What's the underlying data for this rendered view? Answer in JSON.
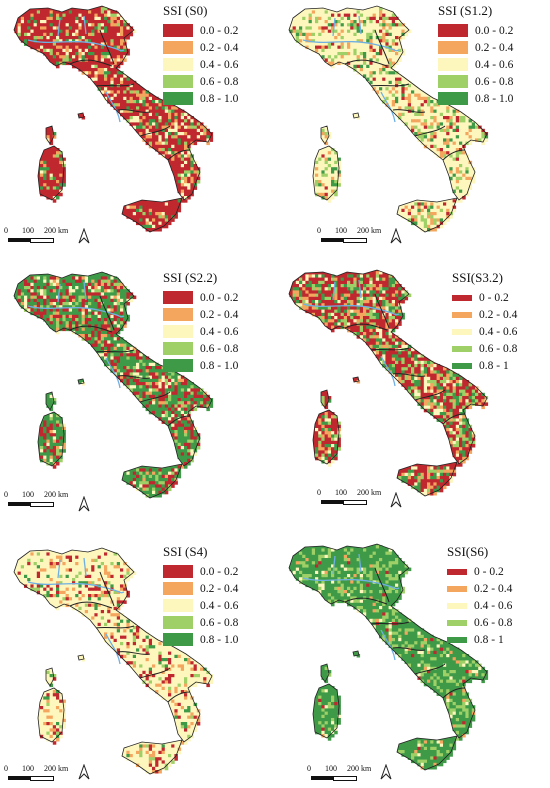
{
  "colors": {
    "c1": "#c0282f",
    "c2": "#f4a55e",
    "c3": "#fdf6bd",
    "c4": "#9ed067",
    "c5": "#3f9a48",
    "water": "#6fb0e3",
    "border": "#222222"
  },
  "scale": {
    "t0": "0",
    "t1": "100",
    "t2": "200 km"
  },
  "icons": {
    "north": "north-arrow-icon"
  },
  "panels": [
    {
      "title": "SSI (S0)",
      "classes": [
        "0.0 - 0.2",
        "0.2 - 0.4",
        "0.4 - 0.6",
        "0.6 - 0.8",
        "0.8 - 1.0"
      ],
      "dominant": [
        0.62,
        0.12,
        0.12,
        0.06,
        0.08
      ]
    },
    {
      "title": "SSI (S1.2)",
      "classes": [
        "0.0 - 0.2",
        "0.2 - 0.4",
        "0.4 - 0.6",
        "0.6 - 0.8",
        "0.8 - 1.0"
      ],
      "dominant": [
        0.07,
        0.12,
        0.6,
        0.13,
        0.08
      ]
    },
    {
      "title": "SSI (S2.2)",
      "classes": [
        "0.0 - 0.2",
        "0.2 - 0.4",
        "0.4 - 0.6",
        "0.6 - 0.8",
        "0.8 - 1.0"
      ],
      "dominant": [
        0.28,
        0.08,
        0.08,
        0.1,
        0.46
      ]
    },
    {
      "title": "SSI(S3.2)",
      "classes": [
        "0 - 0.2",
        "0.2 - 0.4",
        "0.4 - 0.6",
        "0.6 - 0.8",
        "0.8 - 1"
      ],
      "dominant": [
        0.42,
        0.14,
        0.1,
        0.14,
        0.2
      ]
    },
    {
      "title": "SSI (S4)",
      "classes": [
        "0.0 - 0.2",
        "0.2 - 0.4",
        "0.4 - 0.6",
        "0.6 - 0.8",
        "0.8 - 1.0"
      ],
      "dominant": [
        0.12,
        0.1,
        0.68,
        0.05,
        0.05
      ]
    },
    {
      "title": "SSI(S6)",
      "classes": [
        "0 - 0.2",
        "0.2 - 0.4",
        "0.4 - 0.6",
        "0.6 - 0.8",
        "0.8 - 1"
      ],
      "dominant": [
        0.02,
        0.03,
        0.06,
        0.2,
        0.69
      ]
    }
  ]
}
